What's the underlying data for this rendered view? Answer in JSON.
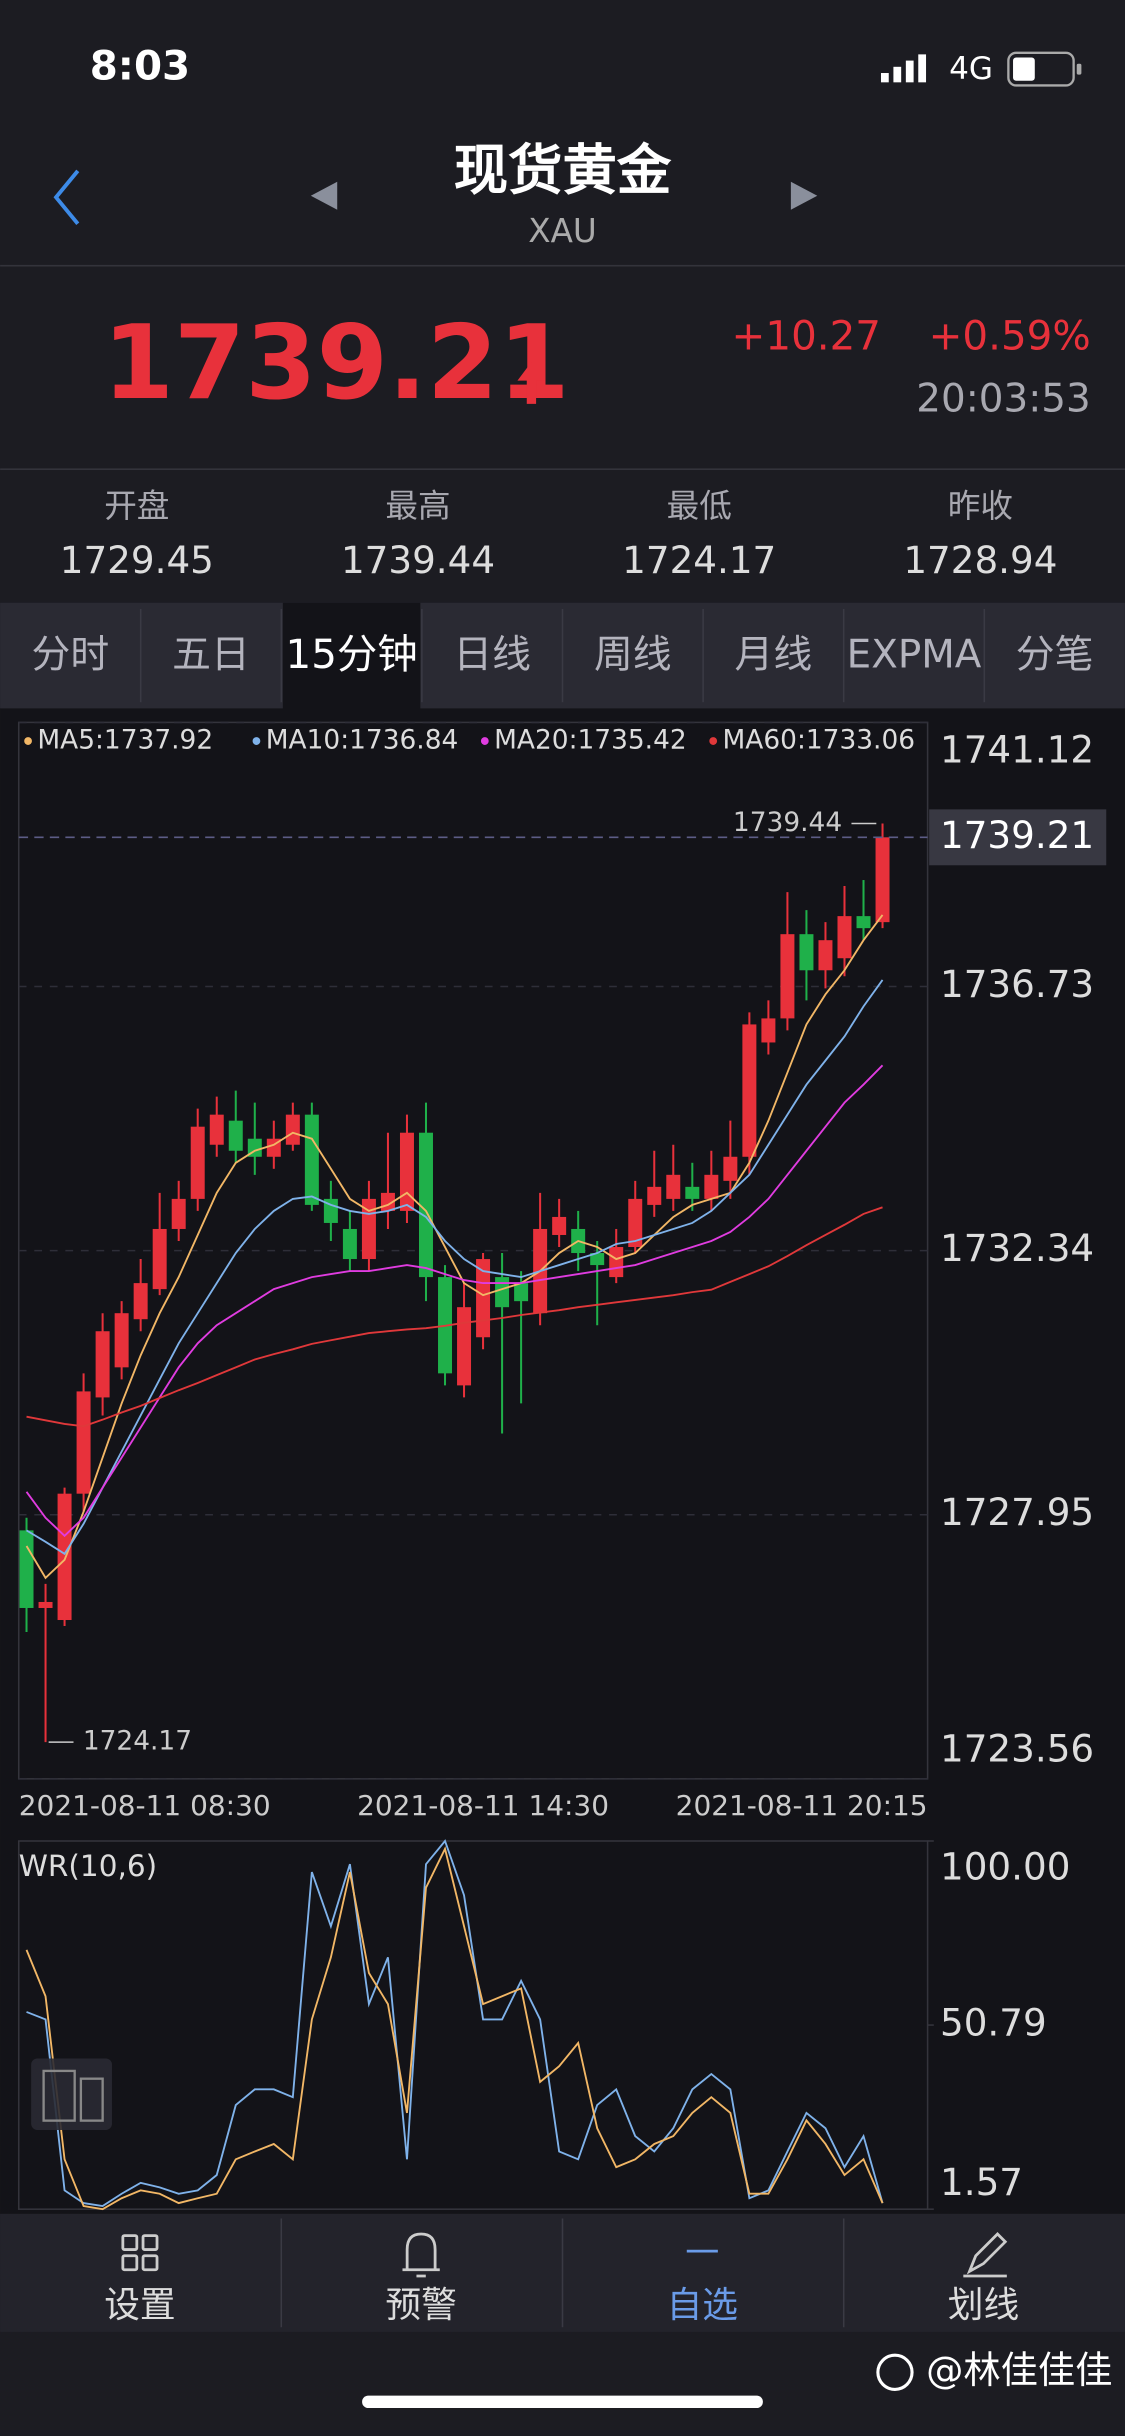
{
  "status_bar": {
    "time": "8:03",
    "network": "4G"
  },
  "header": {
    "title": "现货黄金",
    "code": "XAU"
  },
  "quote": {
    "price": "1739.21",
    "change": "+10.27",
    "change_pct": "+0.59%",
    "time": "20:03:53"
  },
  "stats": [
    {
      "label": "开盘",
      "value": "1729.45"
    },
    {
      "label": "最高",
      "value": "1739.44"
    },
    {
      "label": "最低",
      "value": "1724.17"
    },
    {
      "label": "昨收",
      "value": "1728.94"
    }
  ],
  "tabs": [
    "分时",
    "五日",
    "15分钟",
    "日线",
    "周线",
    "月线",
    "EXPMA",
    "分笔"
  ],
  "active_tab": 2,
  "chart_data": [
    {
      "type": "candlestick",
      "categories": [
        "2021-08-11 08:30",
        null,
        null,
        null,
        null,
        null,
        null,
        null,
        null,
        null,
        null,
        null,
        null,
        null,
        null,
        null,
        null,
        null,
        null,
        null,
        null,
        null,
        null,
        null,
        "2021-08-11 14:30",
        null,
        null,
        null,
        null,
        null,
        null,
        null,
        null,
        null,
        null,
        null,
        null,
        null,
        null,
        null,
        null,
        null,
        null,
        null,
        null,
        "2021-08-11 20:15"
      ],
      "open": [
        1727.69,
        1726.4,
        1726.2,
        1728.3,
        1729.9,
        1730.4,
        1731.2,
        1731.7,
        1732.7,
        1733.2,
        1734.1,
        1734.5,
        1734.2,
        1733.9,
        1734.1,
        1734.6,
        1733.2,
        1732.7,
        1732.2,
        1733.0,
        1733.0,
        1734.3,
        1731.9,
        1730.1,
        1730.9,
        1731.9,
        1731.8,
        1731.3,
        1732.6,
        1732.7,
        1732.3,
        1731.9,
        1732.4,
        1733.1,
        1733.2,
        1733.4,
        1733.2,
        1733.5,
        1733.9,
        1735.8,
        1736.2,
        1737.6,
        1737.0,
        1737.2,
        1737.9,
        1737.8
      ],
      "high": [
        1727.9,
        1726.8,
        1728.4,
        1730.3,
        1731.3,
        1731.5,
        1732.2,
        1733.3,
        1733.5,
        1734.7,
        1734.9,
        1735.0,
        1734.8,
        1734.5,
        1734.8,
        1734.8,
        1733.5,
        1733.0,
        1733.5,
        1734.3,
        1734.6,
        1734.8,
        1732.1,
        1731.8,
        1732.3,
        1732.3,
        1732.0,
        1733.3,
        1733.2,
        1733.0,
        1732.5,
        1732.7,
        1733.5,
        1734.0,
        1734.1,
        1733.8,
        1734.0,
        1734.5,
        1736.3,
        1736.5,
        1738.3,
        1738.0,
        1737.8,
        1738.4,
        1738.5,
        1739.44
      ],
      "low": [
        1726.0,
        1724.17,
        1726.1,
        1728.0,
        1729.6,
        1730.2,
        1731.0,
        1731.6,
        1732.5,
        1733.0,
        1733.9,
        1733.8,
        1733.6,
        1733.7,
        1734.0,
        1733.0,
        1732.5,
        1732.0,
        1732.0,
        1732.7,
        1732.8,
        1731.5,
        1730.1,
        1729.9,
        1730.7,
        1729.3,
        1729.8,
        1731.1,
        1732.4,
        1732.0,
        1731.1,
        1731.8,
        1732.3,
        1732.9,
        1733.0,
        1733.0,
        1733.0,
        1733.2,
        1733.6,
        1735.6,
        1736.0,
        1736.5,
        1736.7,
        1736.9,
        1737.5,
        1737.7
      ],
      "close": [
        1726.4,
        1726.5,
        1728.3,
        1730.0,
        1731.0,
        1731.3,
        1731.8,
        1732.7,
        1733.2,
        1734.4,
        1734.6,
        1734.0,
        1733.9,
        1734.2,
        1734.6,
        1733.1,
        1732.8,
        1732.2,
        1733.2,
        1733.3,
        1734.3,
        1731.9,
        1730.3,
        1731.4,
        1732.2,
        1731.4,
        1731.5,
        1732.7,
        1732.9,
        1732.3,
        1732.1,
        1732.4,
        1733.2,
        1733.4,
        1733.6,
        1733.2,
        1733.6,
        1733.9,
        1736.1,
        1736.2,
        1737.6,
        1737.0,
        1737.5,
        1737.9,
        1737.7,
        1739.21
      ],
      "up_color": "#e8313b",
      "down_color": "#1fb04a",
      "series": [
        {
          "name": "MA5:1737.92",
          "color": "#f2b766",
          "values": [
            1727.43,
            1726.9,
            1727.2,
            1728.0,
            1728.9,
            1729.8,
            1730.6,
            1731.3,
            1731.9,
            1732.6,
            1733.3,
            1733.8,
            1734.0,
            1734.1,
            1734.3,
            1734.2,
            1733.7,
            1733.2,
            1733.0,
            1733.1,
            1733.3,
            1733.0,
            1732.4,
            1731.8,
            1731.6,
            1731.7,
            1731.8,
            1732.0,
            1732.3,
            1732.5,
            1732.4,
            1732.2,
            1732.3,
            1732.6,
            1732.9,
            1733.1,
            1733.2,
            1733.3,
            1733.8,
            1734.5,
            1735.3,
            1736.1,
            1736.6,
            1737.0,
            1737.5,
            1737.92
          ]
        },
        {
          "name": "MA10:1736.84",
          "color": "#7fb2ea",
          "values": [
            1727.69,
            1727.5,
            1727.3,
            1727.8,
            1728.4,
            1729.0,
            1729.6,
            1730.2,
            1730.8,
            1731.3,
            1731.8,
            1732.3,
            1732.7,
            1733.0,
            1733.2,
            1733.24,
            1733.1,
            1733.0,
            1732.95,
            1733.0,
            1733.1,
            1732.9,
            1732.5,
            1732.2,
            1732.0,
            1731.95,
            1731.9,
            1732.0,
            1732.1,
            1732.2,
            1732.3,
            1732.45,
            1732.5,
            1732.6,
            1732.7,
            1732.8,
            1733.0,
            1733.3,
            1733.6,
            1734.1,
            1734.6,
            1735.1,
            1735.5,
            1735.9,
            1736.4,
            1736.84
          ]
        },
        {
          "name": "MA20:1735.42",
          "color": "#e03ce0",
          "values": [
            1728.33,
            1727.9,
            1727.6,
            1727.9,
            1728.4,
            1728.9,
            1729.4,
            1729.9,
            1730.4,
            1730.8,
            1731.1,
            1731.3,
            1731.5,
            1731.7,
            1731.8,
            1731.9,
            1731.95,
            1732.0,
            1732.0,
            1732.05,
            1732.1,
            1732.05,
            1731.95,
            1731.85,
            1731.8,
            1731.8,
            1731.8,
            1731.85,
            1731.9,
            1731.95,
            1732.0,
            1732.05,
            1732.1,
            1732.2,
            1732.3,
            1732.4,
            1732.5,
            1732.65,
            1732.9,
            1733.2,
            1733.6,
            1734.0,
            1734.4,
            1734.8,
            1735.1,
            1735.42
          ]
        },
        {
          "name": "MA60:1733.06",
          "color": "#e0383a",
          "values": [
            1729.58,
            1729.52,
            1729.46,
            1729.42,
            1729.53,
            1729.65,
            1729.76,
            1729.89,
            1730.02,
            1730.14,
            1730.27,
            1730.4,
            1730.53,
            1730.62,
            1730.7,
            1730.79,
            1730.85,
            1730.91,
            1730.97,
            1731.0,
            1731.03,
            1731.05,
            1731.09,
            1731.14,
            1731.18,
            1731.22,
            1731.27,
            1731.31,
            1731.35,
            1731.4,
            1731.44,
            1731.48,
            1731.52,
            1731.56,
            1731.6,
            1731.65,
            1731.69,
            1731.82,
            1731.95,
            1732.08,
            1732.25,
            1732.43,
            1732.6,
            1732.77,
            1732.95,
            1733.06
          ]
        }
      ],
      "ylim": [
        1723.56,
        1741.12
      ],
      "yticks": [
        1741.12,
        1736.73,
        1732.34,
        1727.95,
        1723.56
      ],
      "last_price": 1739.21,
      "high_label": 1739.44,
      "low_label": 1724.17,
      "grid": true
    },
    {
      "type": "line",
      "title": "WR(10,6)",
      "series": [
        {
          "color": "#7fb2ea",
          "values": [
            54.3,
            52.3,
            6.6,
            3.2,
            2.4,
            5.7,
            8.6,
            7.4,
            5.7,
            6.6,
            10.7,
            29.4,
            33.6,
            33.6,
            31.5,
            91.7,
            77.2,
            93.8,
            56.4,
            68.9,
            14.9,
            93.8,
            100,
            85.5,
            52.3,
            52.3,
            62.6,
            52.3,
            17.0,
            14.9,
            29.4,
            33.6,
            21.1,
            17.0,
            23.2,
            33.6,
            37.7,
            33.6,
            4.5,
            6.6,
            17.0,
            27.3,
            23.2,
            12.8,
            21.1,
            3.2
          ]
        },
        {
          "color": "#f2b766",
          "values": [
            70.9,
            58.5,
            14.9,
            2.4,
            1.57,
            4.5,
            6.6,
            5.7,
            3.2,
            4.5,
            5.7,
            14.9,
            17.0,
            19.0,
            14.9,
            52.3,
            68.9,
            91.7,
            64.7,
            56.4,
            27.3,
            87.5,
            97.9,
            77.2,
            56.4,
            58.5,
            60.6,
            35.6,
            39.8,
            46.0,
            23.2,
            12.8,
            14.9,
            19.0,
            21.1,
            27.3,
            31.5,
            27.3,
            5.7,
            5.7,
            14.9,
            25.3,
            19.0,
            10.7,
            14.9,
            3.2
          ]
        }
      ],
      "ylim": [
        1.57,
        100
      ],
      "yticks": [
        {
          "value": 100,
          "label": "100.00"
        },
        50.79,
        1.57
      ]
    }
  ],
  "footer_tabs": [
    "设置",
    "预警",
    "自选",
    "划线"
  ],
  "active_footer_tab": 2,
  "watermark": "@林佳佳佳"
}
